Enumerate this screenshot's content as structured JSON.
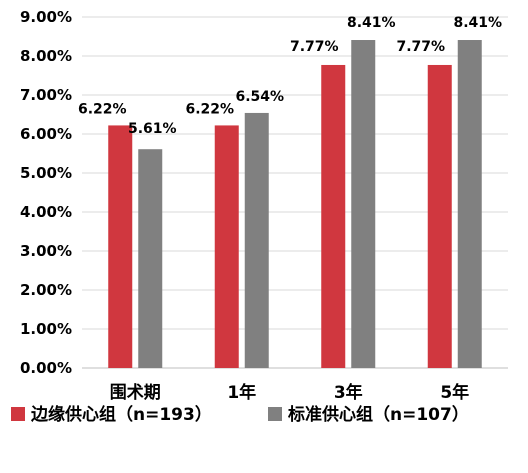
{
  "chart_data": {
    "type": "bar",
    "title": "",
    "xlabel": "",
    "ylabel": "",
    "categories": [
      "围术期",
      "1年",
      "3年",
      "5年"
    ],
    "series": [
      {
        "name": "边缘供心组（n=193）",
        "values": [
          6.22,
          6.22,
          7.77,
          7.77
        ],
        "labels": [
          "6.22%",
          "6.22%",
          "7.77%",
          "7.77%"
        ],
        "color": "#D0373F"
      },
      {
        "name": "标准供心组（n=107）",
        "values": [
          5.61,
          6.54,
          8.41,
          8.41
        ],
        "labels": [
          "5.61%",
          "6.54%",
          "8.41%",
          "8.41%"
        ],
        "color": "#808080"
      }
    ],
    "ylim": [
      0,
      9
    ],
    "yticks": [
      0,
      1,
      2,
      3,
      4,
      5,
      6,
      7,
      8,
      9
    ],
    "ytick_labels": [
      "0.00%",
      "1.00%",
      "2.00%",
      "3.00%",
      "4.00%",
      "5.00%",
      "6.00%",
      "7.00%",
      "8.00%",
      "9.00%"
    ],
    "grid": true,
    "legend_position": "bottom",
    "gridline_color": "#D9D9D9"
  }
}
